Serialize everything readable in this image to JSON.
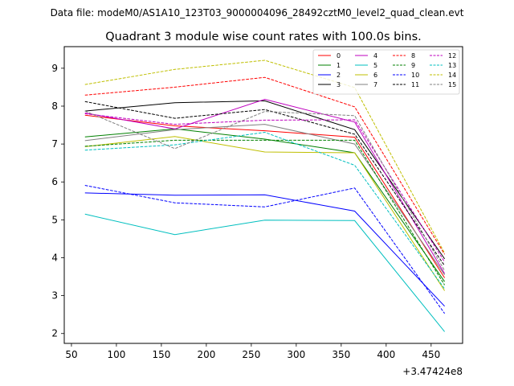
{
  "suptitle": "Data file: modeM0/AS1A10_123T03_9000004096_28492cztM0_level2_quad_clean.evt",
  "chart_data": {
    "type": "line",
    "title": "Quadrant 3 module wise count rates with 100.0s bins.",
    "xlabel": "",
    "ylabel": "",
    "x_offset_label": "+3.47424e8",
    "x": [
      65,
      165,
      265,
      365,
      465
    ],
    "xlim": [
      42,
      485
    ],
    "ylim": [
      1.74,
      9.57
    ],
    "xticks": [
      50,
      100,
      150,
      200,
      250,
      300,
      350,
      400,
      450
    ],
    "yticks": [
      2,
      3,
      4,
      5,
      6,
      7,
      8,
      9
    ],
    "legend_location": "top-right",
    "series": [
      {
        "name": "0",
        "color": "#ff0000",
        "style": "solid",
        "values": [
          7.76,
          7.48,
          7.35,
          7.18,
          3.47
        ]
      },
      {
        "name": "1",
        "color": "#008000",
        "style": "solid",
        "values": [
          7.19,
          7.4,
          7.13,
          6.77,
          3.37
        ]
      },
      {
        "name": "2",
        "color": "#0000ff",
        "style": "solid",
        "values": [
          5.71,
          5.65,
          5.66,
          5.23,
          2.72
        ]
      },
      {
        "name": "3",
        "color": "#000000",
        "style": "solid",
        "values": [
          7.87,
          8.09,
          8.14,
          7.38,
          3.97
        ]
      },
      {
        "name": "4",
        "color": "#bf00bf",
        "style": "solid",
        "values": [
          7.82,
          7.4,
          8.18,
          7.58,
          3.58
        ]
      },
      {
        "name": "5",
        "color": "#00bfbf",
        "style": "solid",
        "values": [
          5.15,
          4.61,
          4.99,
          4.98,
          2.05
        ]
      },
      {
        "name": "6",
        "color": "#bfbf00",
        "style": "solid",
        "values": [
          6.93,
          7.2,
          6.79,
          6.77,
          3.13
        ]
      },
      {
        "name": "7",
        "color": "#808080",
        "style": "solid",
        "values": [
          7.09,
          7.38,
          7.52,
          7.0,
          3.55
        ]
      },
      {
        "name": "8",
        "color": "#ff0000",
        "style": "dashed",
        "values": [
          8.29,
          8.5,
          8.76,
          7.98,
          4.09
        ]
      },
      {
        "name": "9",
        "color": "#008000",
        "style": "dashed",
        "values": [
          6.94,
          7.1,
          7.1,
          7.1,
          3.28
        ]
      },
      {
        "name": "10",
        "color": "#0000ff",
        "style": "dashed",
        "values": [
          5.91,
          5.45,
          5.34,
          5.84,
          2.53
        ]
      },
      {
        "name": "11",
        "color": "#000000",
        "style": "dashed",
        "values": [
          8.12,
          7.68,
          7.91,
          7.26,
          3.79
        ]
      },
      {
        "name": "12",
        "color": "#bf00bf",
        "style": "dashed",
        "values": [
          7.8,
          7.52,
          7.63,
          7.64,
          3.89
        ]
      },
      {
        "name": "13",
        "color": "#00bfbf",
        "style": "dashed",
        "values": [
          6.84,
          6.98,
          7.31,
          6.44,
          3.18
        ]
      },
      {
        "name": "14",
        "color": "#bfbf00",
        "style": "dashed",
        "values": [
          8.57,
          8.97,
          9.21,
          8.49,
          4.12
        ]
      },
      {
        "name": "15",
        "color": "#808080",
        "style": "dashed",
        "values": [
          7.87,
          6.88,
          7.86,
          7.75,
          3.66
        ]
      }
    ]
  }
}
